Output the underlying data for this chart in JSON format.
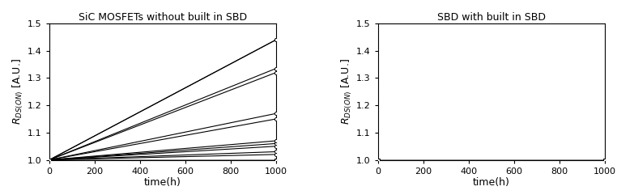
{
  "title_left": "SiC MOSFETs without built in SBD",
  "title_right": "SBD with built in SBD",
  "xlabel": "time(h)",
  "ylim": [
    1.0,
    1.5
  ],
  "xlim": [
    0,
    1000
  ],
  "yticks": [
    1.0,
    1.1,
    1.2,
    1.3,
    1.4,
    1.5
  ],
  "xticks": [
    0,
    200,
    400,
    600,
    800,
    1000
  ],
  "left_lines_start": [
    1.0,
    1.0,
    1.0,
    1.0,
    1.0,
    1.0,
    1.0,
    1.0,
    1.0,
    1.0,
    1.0,
    1.0,
    1.0,
    1.0,
    1.0,
    1.0,
    1.0,
    1.0,
    1.0,
    1.0,
    1.0
  ],
  "left_lines_end": [
    1.0,
    1.0,
    1.0,
    1.0,
    1.0,
    1.0,
    1.0,
    1.0,
    1.0,
    1.0,
    1.02,
    1.03,
    1.05,
    1.06,
    1.07,
    1.15,
    1.17,
    1.32,
    1.335,
    1.44,
    1.44
  ],
  "right_lines_start": [
    1.0,
    1.0,
    1.0,
    1.0,
    1.0,
    1.0,
    1.0,
    1.0,
    1.0,
    1.0
  ],
  "right_lines_end": [
    1.0,
    1.0,
    1.0,
    1.0,
    1.0,
    1.0,
    1.0,
    1.0,
    1.0,
    1.0
  ],
  "marker": "o",
  "marker_size": 3,
  "line_width": 0.8,
  "line_color": "#000000",
  "bg_color": "#ffffff",
  "title_fontsize": 9,
  "tick_fontsize": 8,
  "label_fontsize": 9
}
